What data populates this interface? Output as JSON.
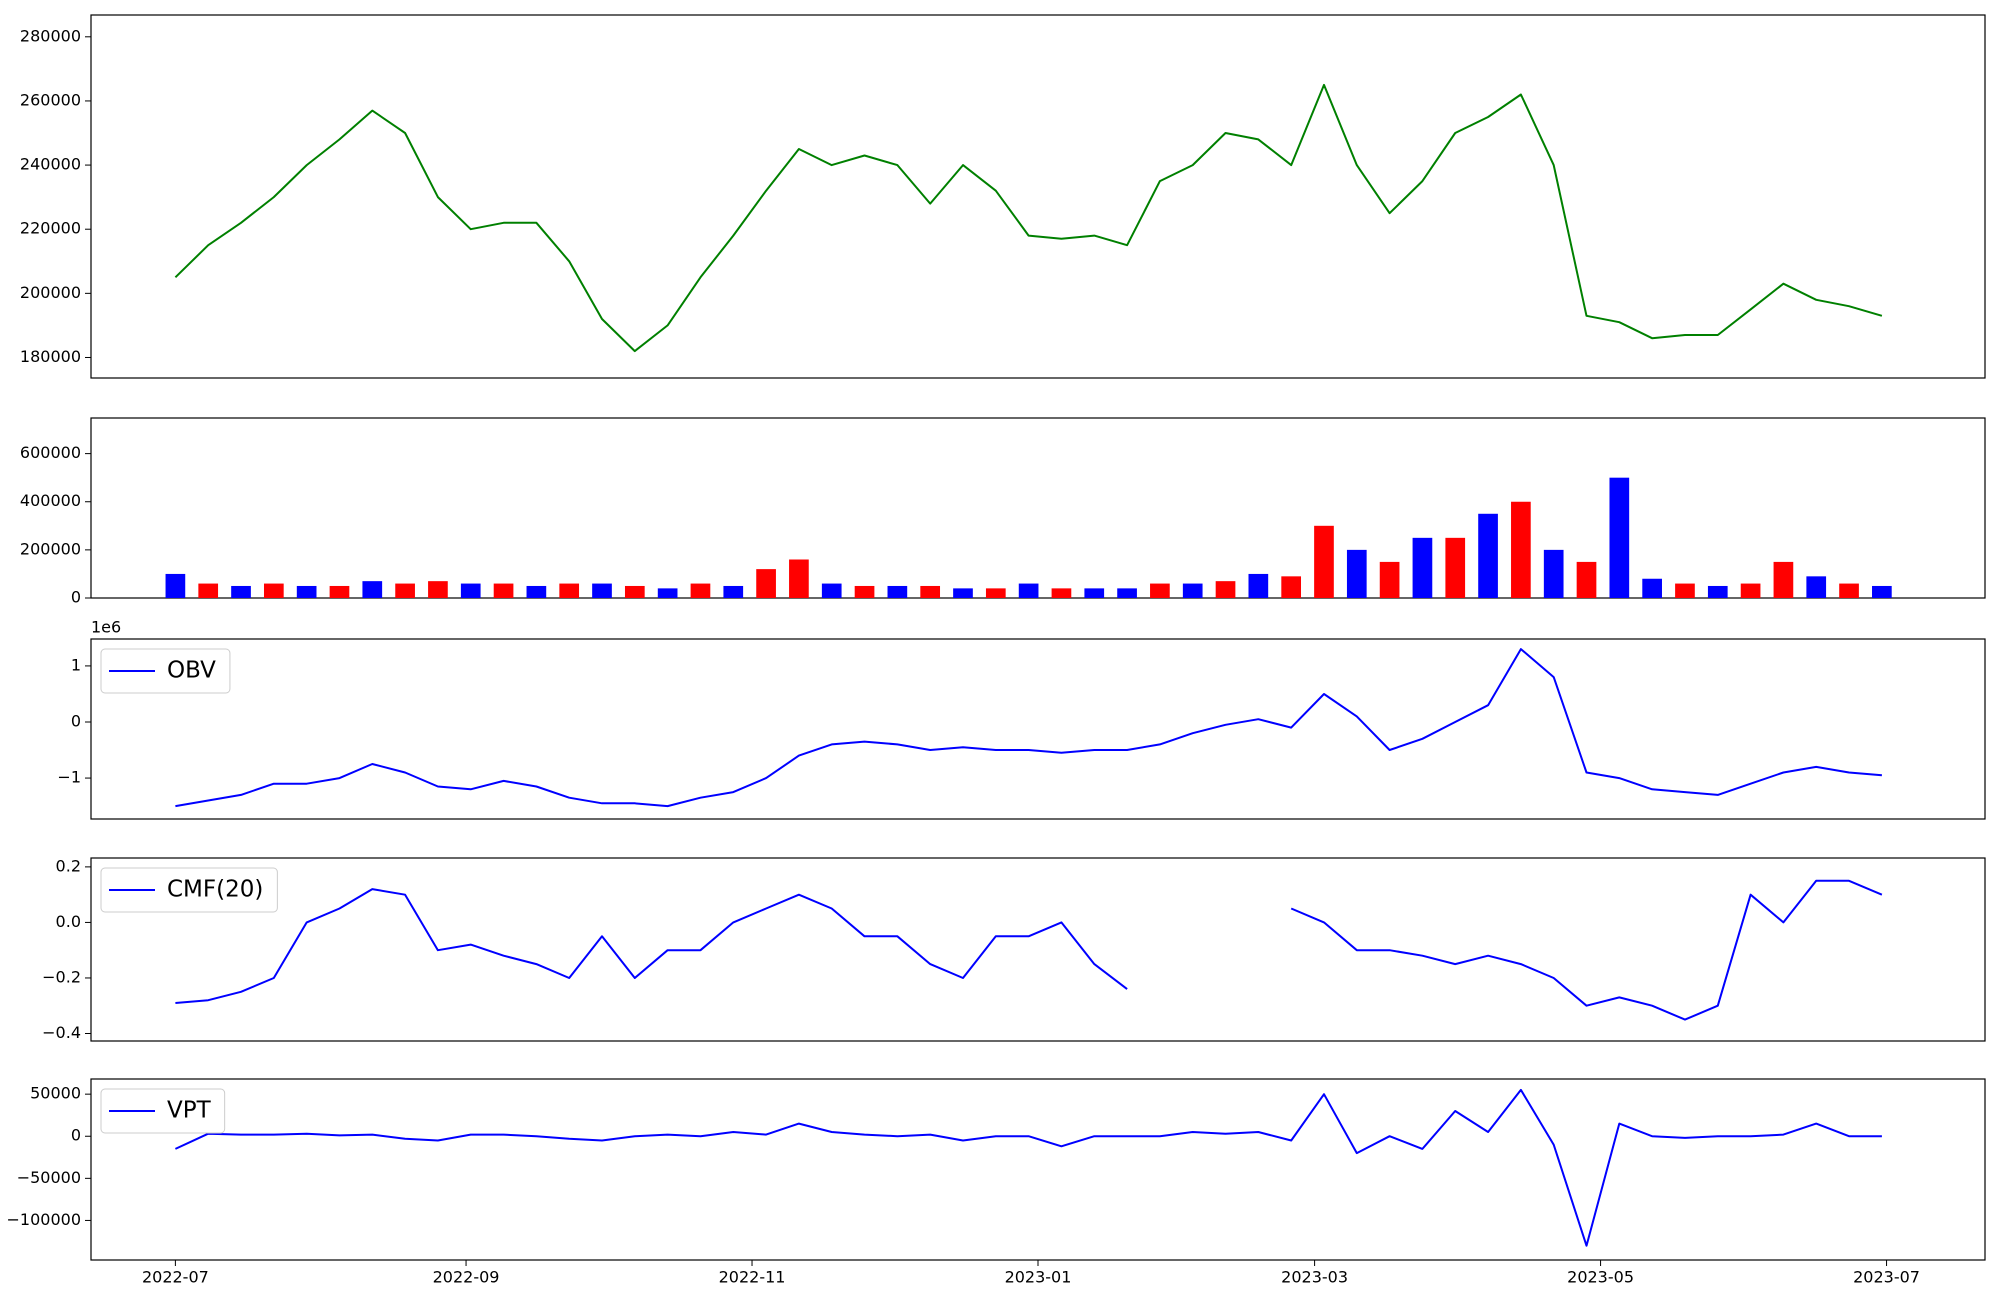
{
  "chart_data": [
    {
      "type": "line",
      "color": "green",
      "values": [
        205000,
        215000,
        222000,
        230000,
        240000,
        248000,
        257000,
        250000,
        230000,
        220000,
        222000,
        222000,
        210000,
        192000,
        182000,
        190000,
        205000,
        218000,
        232000,
        245000,
        240000,
        243000,
        240000,
        228000,
        240000,
        232000,
        218000,
        217000,
        218000,
        215000,
        235000,
        240000,
        250000,
        248000,
        240000,
        265000,
        240000,
        225000,
        235000,
        250000,
        255000,
        262000,
        240000,
        193000,
        191000,
        186000,
        187000,
        187000,
        195000,
        203000,
        198000,
        196000,
        193000
      ],
      "ylim": [
        173600,
        286800
      ],
      "yticks": [
        180000,
        200000,
        220000,
        240000,
        260000,
        280000
      ]
    },
    {
      "type": "bar",
      "values": [
        100000,
        60000,
        50000,
        60000,
        50000,
        50000,
        70000,
        60000,
        70000,
        60000,
        60000,
        50000,
        60000,
        60000,
        50000,
        40000,
        60000,
        50000,
        120000,
        160000,
        60000,
        50000,
        50000,
        50000,
        40000,
        40000,
        60000,
        40000,
        40000,
        40000,
        60000,
        60000,
        70000,
        100000,
        90000,
        300000,
        200000,
        150000,
        250000,
        250000,
        350000,
        400000,
        200000,
        150000,
        500000,
        80000,
        60000,
        50000,
        60000,
        150000,
        90000,
        60000,
        50000
      ],
      "colors": [
        "blue",
        "red",
        "blue",
        "red",
        "blue",
        "red",
        "blue",
        "red",
        "red",
        "blue",
        "red",
        "blue",
        "red",
        "blue",
        "red",
        "blue",
        "red",
        "blue",
        "red",
        "red",
        "blue",
        "red",
        "blue",
        "red",
        "blue",
        "red",
        "blue",
        "red",
        "blue",
        "blue",
        "red",
        "blue",
        "red",
        "blue",
        "red",
        "red",
        "blue",
        "red",
        "blue",
        "red",
        "blue",
        "red",
        "blue",
        "red",
        "blue",
        "blue",
        "red",
        "blue",
        "red",
        "red",
        "blue",
        "red",
        "blue"
      ],
      "ylim": [
        0,
        748000
      ],
      "yticks": [
        0,
        200000,
        400000,
        600000
      ]
    },
    {
      "type": "line",
      "y_offset_label": "1e6",
      "legend": "upper left",
      "series": [
        {
          "name": "OBV",
          "color": "blue",
          "values": [
            -1.5,
            -1.4,
            -1.3,
            -1.1,
            -1.1,
            -1.0,
            -0.75,
            -0.9,
            -1.15,
            -1.2,
            -1.05,
            -1.15,
            -1.35,
            -1.45,
            -1.45,
            -1.5,
            -1.35,
            -1.25,
            -1.0,
            -0.6,
            -0.4,
            -0.35,
            -0.4,
            -0.5,
            -0.45,
            -0.5,
            -0.5,
            -0.55,
            -0.5,
            -0.5,
            -0.4,
            -0.2,
            -0.05,
            0.05,
            -0.1,
            0.5,
            0.1,
            -0.5,
            -0.3,
            0.0,
            0.3,
            1.3,
            0.8,
            -0.9,
            -1.0,
            -1.2,
            -1.25,
            -1.3,
            -1.1,
            -0.9,
            -0.8,
            -0.9,
            -0.95
          ]
        }
      ],
      "ylim": [
        -1.73,
        1.48
      ],
      "yticks": [
        {
          "value": -1,
          "label": "−1"
        },
        0,
        1
      ]
    },
    {
      "type": "line",
      "legend": "upper left",
      "series": [
        {
          "name": "CMF(20)",
          "color": "blue",
          "values": [
            -0.29,
            -0.28,
            -0.25,
            -0.2,
            0.0,
            0.05,
            0.12,
            0.1,
            -0.1,
            -0.08,
            -0.12,
            -0.15,
            -0.2,
            -0.05,
            -0.2,
            -0.1,
            -0.1,
            0.0,
            0.05,
            0.1,
            0.05,
            -0.05,
            -0.05,
            -0.15,
            -0.2,
            -0.05,
            -0.05,
            0.0,
            -0.15,
            -0.24,
            null,
            null,
            null,
            null,
            0.05,
            0.0,
            -0.1,
            -0.1,
            -0.12,
            -0.15,
            -0.12,
            -0.15,
            -0.2,
            -0.3,
            -0.27,
            -0.3,
            -0.35,
            -0.3,
            0.1,
            0.0,
            0.15,
            0.15,
            0.1
          ]
        }
      ],
      "ylim": [
        -0.427,
        0.232
      ],
      "yticks": [
        {
          "value": -0.4,
          "label": "−0.4"
        },
        {
          "value": -0.2,
          "label": "−0.2"
        },
        {
          "value": 0,
          "label": "0.0"
        },
        0.2
      ]
    },
    {
      "type": "line",
      "legend": "upper left",
      "series": [
        {
          "name": "VPT",
          "color": "blue",
          "values": [
            -15000,
            3000,
            2000,
            2000,
            3000,
            1000,
            2000,
            -3000,
            -5000,
            2000,
            2000,
            0,
            -3000,
            -5000,
            0,
            2000,
            0,
            5000,
            2000,
            15000,
            5000,
            2000,
            0,
            2000,
            -5000,
            0,
            0,
            -12000,
            0,
            0,
            0,
            5000,
            3000,
            5000,
            -5000,
            50000,
            -20000,
            0,
            -15000,
            30000,
            5000,
            55000,
            -10000,
            -130000,
            15000,
            0,
            -2000,
            0,
            0,
            2000,
            15000,
            0,
            0
          ]
        }
      ],
      "ylim": [
        -147000,
        68000
      ],
      "yticks": [
        {
          "value": -100000,
          "label": "−100000"
        },
        {
          "value": -50000,
          "label": "−50000"
        },
        0,
        50000
      ],
      "x": [
        "2022-07-01",
        "2022-07-08",
        "2022-07-15",
        "2022-07-22",
        "2022-07-29",
        "2022-08-05",
        "2022-08-12",
        "2022-08-19",
        "2022-08-26",
        "2022-09-02",
        "2022-09-09",
        "2022-09-16",
        "2022-09-23",
        "2022-09-30",
        "2022-10-07",
        "2022-10-14",
        "2022-10-21",
        "2022-10-28",
        "2022-11-04",
        "2022-11-11",
        "2022-11-18",
        "2022-11-25",
        "2022-12-02",
        "2022-12-09",
        "2022-12-16",
        "2022-12-23",
        "2022-12-30",
        "2023-01-06",
        "2023-01-13",
        "2023-01-20",
        "2023-01-27",
        "2023-02-03",
        "2023-02-10",
        "2023-02-17",
        "2023-02-24",
        "2023-03-03",
        "2023-03-10",
        "2023-03-17",
        "2023-03-24",
        "2023-03-31",
        "2023-04-07",
        "2023-04-14",
        "2023-04-21",
        "2023-04-28",
        "2023-05-05",
        "2023-05-12",
        "2023-05-19",
        "2023-05-26",
        "2023-06-02",
        "2023-06-09",
        "2023-06-16",
        "2023-06-23",
        "2023-06-30"
      ],
      "xlim": [
        "2022-06-13",
        "2023-07-22"
      ],
      "xticks": [
        "2022-07",
        "2022-09",
        "2022-11",
        "2023-01",
        "2023-03",
        "2023-05",
        "2023-07"
      ]
    }
  ]
}
